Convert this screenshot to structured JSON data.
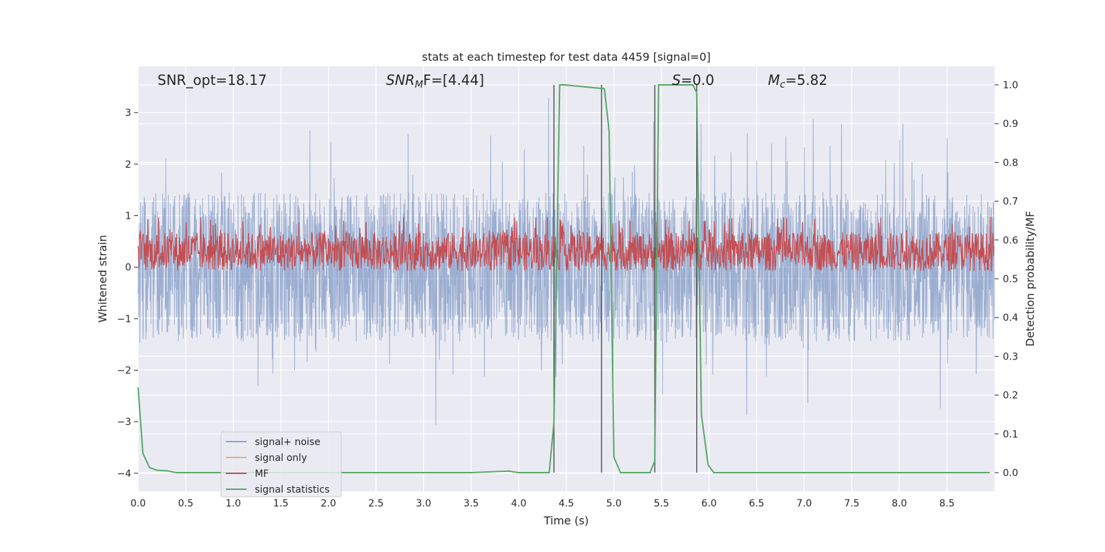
{
  "chart_data": {
    "type": "line",
    "title": "stats at each timestep for test data 4459 [signal=0]",
    "xlabel": "Time (s)",
    "ylabel": "Whitened strain",
    "y2label": "Detection probability/MF",
    "xlim": [
      0.0,
      9.0
    ],
    "ylim": [
      -4.35,
      3.9
    ],
    "y2lim": [
      -0.048,
      1.048
    ],
    "grid": true,
    "legend_position": "lower-left",
    "x_ticks": [
      "0.0",
      "0.5",
      "1.0",
      "1.5",
      "2.0",
      "2.5",
      "3.0",
      "3.5",
      "4.0",
      "4.5",
      "5.0",
      "5.5",
      "6.0",
      "6.5",
      "7.0",
      "7.5",
      "8.0",
      "8.5"
    ],
    "y_ticks": [
      "3",
      "2",
      "1",
      "0",
      "−1",
      "−2",
      "−3",
      "−4"
    ],
    "y2_ticks": [
      "1.0",
      "0.9",
      "0.8",
      "0.7",
      "0.6",
      "0.5",
      "0.4",
      "0.3",
      "0.2",
      "0.1",
      "0.0"
    ],
    "annotations": [
      {
        "name": "snr-opt",
        "text": "SNR_opt=18.17"
      },
      {
        "name": "snr-mf",
        "base": "SNR",
        "sub": "M",
        "rest": "F=[4.44]"
      },
      {
        "name": "s-value",
        "base": "S",
        "rest": "=0.0"
      },
      {
        "name": "chirp-mass",
        "base": "M",
        "sub": "c",
        "rest": "=5.82"
      }
    ],
    "series": [
      {
        "name": "signal+ noise",
        "color": "#4c72b0",
        "band_y": [
          -1.45,
          1.45
        ],
        "spike_extent_y": [
          -4.0,
          3.45
        ],
        "axis": "left"
      },
      {
        "name": "signal only",
        "color": "#dd8452",
        "values": [],
        "axis": "left"
      },
      {
        "name": "MF",
        "color": "#c44e52",
        "band_y2": [
          0.52,
          0.62
        ],
        "axis": "right"
      },
      {
        "name": "signal statistics",
        "color": "#55a868",
        "axis": "right",
        "x": [
          0.0,
          0.05,
          0.12,
          0.2,
          0.3,
          0.4,
          0.8,
          1.5,
          2.5,
          3.5,
          3.8,
          3.9,
          4.0,
          4.32,
          4.37,
          4.43,
          4.48,
          4.9,
          4.95,
          5.0,
          5.07,
          5.38,
          5.43,
          5.47,
          5.52,
          5.83,
          5.87,
          5.92,
          5.99,
          6.05,
          6.2,
          8.95
        ],
        "y": [
          0.22,
          0.05,
          0.013,
          0.006,
          0.005,
          0.0,
          0.0,
          0.0,
          0.0,
          0.0,
          0.003,
          0.004,
          0.0,
          0.0,
          0.13,
          1.0,
          1.0,
          0.99,
          0.88,
          0.04,
          0.0,
          0.0,
          0.03,
          1.0,
          1.0,
          1.0,
          0.98,
          0.15,
          0.02,
          0.0,
          0.0,
          0.0
        ]
      }
    ],
    "vertical_markers_x": [
      4.37,
      4.87,
      5.43,
      5.87
    ]
  }
}
